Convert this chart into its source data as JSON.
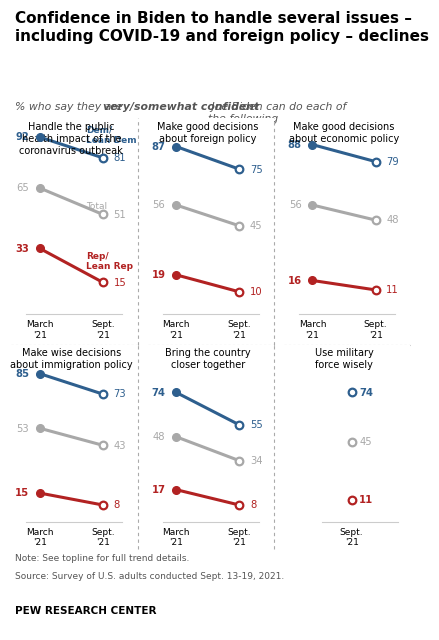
{
  "title": "Confidence in Biden to handle several issues –\nincluding COVID-19 and foreign policy – declines",
  "subtitle_part1": "% who say they are ",
  "subtitle_bold": "very/somewhat confident",
  "subtitle_part2": " Joe Biden can do each of\nthe following",
  "note_line1": "Note: See topline for full trend details.",
  "note_line2": "Source: Survey of U.S. adults conducted Sept. 13-19, 2021.",
  "source": "PEW RESEARCH CENTER",
  "panels": [
    {
      "title": "Handle the public\nhealth impact of the\ncoronavirus outbreak",
      "dem": [
        92,
        81
      ],
      "total": [
        65,
        51
      ],
      "rep": [
        33,
        15
      ],
      "show_legend": true,
      "sept_only": false
    },
    {
      "title": "Make good decisions\nabout foreign policy",
      "dem": [
        87,
        75
      ],
      "total": [
        56,
        45
      ],
      "rep": [
        19,
        10
      ],
      "show_legend": false,
      "sept_only": false
    },
    {
      "title": "Make good decisions\nabout economic policy",
      "dem": [
        88,
        79
      ],
      "total": [
        56,
        48
      ],
      "rep": [
        16,
        11
      ],
      "show_legend": false,
      "sept_only": false
    },
    {
      "title": "Make wise decisions\nabout immigration policy",
      "dem": [
        85,
        73
      ],
      "total": [
        53,
        43
      ],
      "rep": [
        15,
        8
      ],
      "show_legend": false,
      "sept_only": false
    },
    {
      "title": "Bring the country\ncloser together",
      "dem": [
        74,
        55
      ],
      "total": [
        48,
        34
      ],
      "rep": [
        17,
        8
      ],
      "show_legend": false,
      "sept_only": false
    },
    {
      "title": "Use military\nforce wisely",
      "dem": [
        null,
        74
      ],
      "total": [
        null,
        45
      ],
      "rep": [
        null,
        11
      ],
      "show_legend": false,
      "sept_only": true
    }
  ],
  "color_dem": "#2E5F8E",
  "color_total": "#A8A8A8",
  "color_rep": "#B22222",
  "dem_legend": "Dem/\nLean Dem",
  "total_legend": "Total",
  "rep_legend": "Rep/\nLean Rep"
}
